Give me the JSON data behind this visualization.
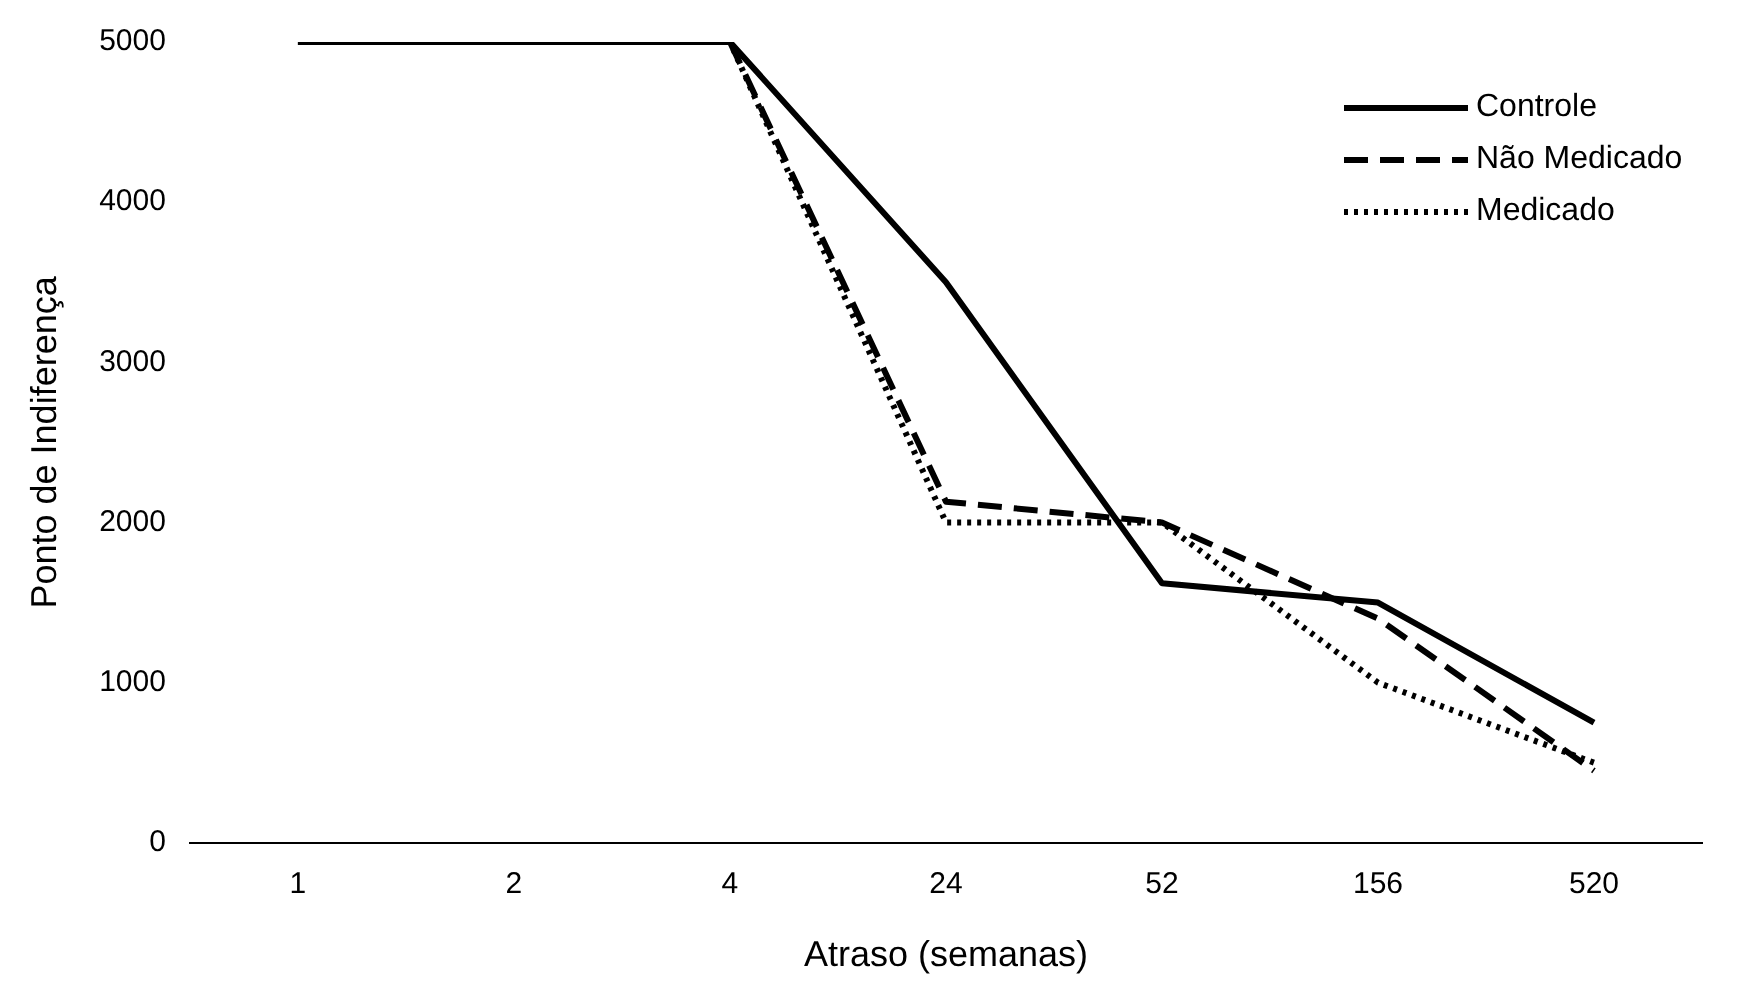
{
  "chart_data": {
    "type": "line",
    "xlabel": "Atraso (semanas)",
    "ylabel": "Ponto de Indiferença",
    "categories": [
      "1",
      "2",
      "4",
      "24",
      "52",
      "156",
      "520"
    ],
    "series": [
      {
        "name": "Controle",
        "color": "#000000",
        "line_style": "solid",
        "values": [
          5000,
          5000,
          5000,
          3500,
          1620,
          1500,
          750
        ]
      },
      {
        "name": "Não Medicado",
        "color": "#000000",
        "line_style": "dashed",
        "values": [
          5000,
          5000,
          5000,
          2130,
          2000,
          1400,
          450
        ]
      },
      {
        "name": "Medicado",
        "color": "#000000",
        "line_style": "dotted",
        "values": [
          5000,
          5000,
          5000,
          2000,
          2000,
          1000,
          500
        ]
      }
    ],
    "ylim": [
      0,
      5000
    ],
    "yticks": [
      0,
      1000,
      2000,
      3000,
      4000,
      5000
    ],
    "grid": false,
    "legend": "top right",
    "marker": "none"
  }
}
